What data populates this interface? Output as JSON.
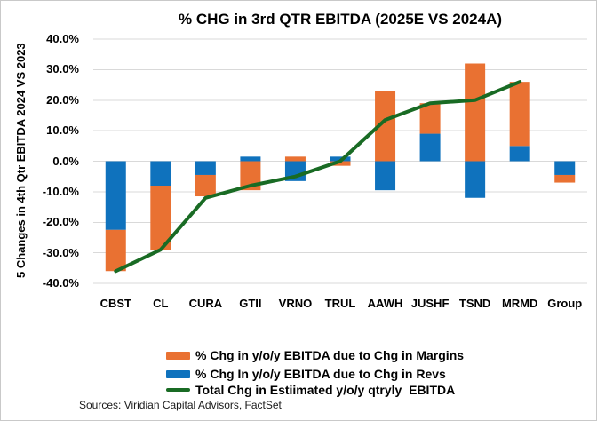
{
  "title": "% CHG in 3rd QTR EBITDA (2025E VS 2024A)",
  "y_axis_title": "5 Changes in 4th Qtr  EBITDA 2024 VS 2023",
  "source_note": "Sources: Viridian Capital Advisors, FactSet",
  "colors": {
    "margins": "#E97132",
    "revs": "#0F72BD",
    "total_line": "#196B24",
    "gridline": "#D9D9D9",
    "border": "#C9C9C9",
    "text": "#000000"
  },
  "legend": [
    {
      "label": "% Chg in y/o/y EBITDA due to Chg in Margins",
      "series": "margins",
      "swatch": "bar"
    },
    {
      "label": "% Chg In y/o/y EBITDA due to Chg in Revs",
      "series": "revs",
      "swatch": "bar"
    },
    {
      "label": "Total Chg in Estiimated y/o/y qtryly  EBITDA",
      "series": "total_line",
      "swatch": "line"
    }
  ],
  "chart_data": {
    "type": "bar",
    "subtype": "stacked-bars-with-line-overlay",
    "title": "% CHG in 3rd QTR EBITDA (2025E VS 2024A)",
    "xlabel": "",
    "ylabel": "5 Changes in 4th Qtr  EBITDA 2024 VS 2023",
    "categories": [
      "CBST",
      "CL",
      "CURA",
      "GTII",
      "VRNO",
      "TRUL",
      "AAWH",
      "JUSHF",
      "TSND",
      "MRMD",
      "Group"
    ],
    "series": [
      {
        "name": "% Chg In y/o/y EBITDA due to Chg in Revs",
        "type": "bar",
        "color_key": "revs",
        "values": [
          -22.5,
          -8,
          -4.5,
          1.5,
          -6.5,
          1.5,
          -9.5,
          9,
          -12,
          5,
          -4.5
        ]
      },
      {
        "name": "% Chg in y/o/y EBITDA due to Chg in Margins",
        "type": "bar",
        "color_key": "margins",
        "values": [
          -13.5,
          -21,
          -7,
          -9.5,
          1.5,
          -1.5,
          23,
          10,
          32,
          21,
          -2.5
        ]
      },
      {
        "name": "Total Chg in Estiimated y/o/y qtryly  EBITDA",
        "type": "line",
        "color_key": "total_line",
        "values": [
          -36,
          -29,
          -12,
          -8,
          -5,
          0,
          13.5,
          19,
          20,
          26,
          null
        ]
      }
    ],
    "ylim": [
      -40,
      40
    ],
    "y_ticks": [
      "40.0%",
      "30.0%",
      "20.0%",
      "10.0%",
      "0.0%",
      "-10.0%",
      "-20.0%",
      "-30.0%",
      "-40.0%"
    ],
    "grid": true,
    "legend_position": "bottom"
  }
}
